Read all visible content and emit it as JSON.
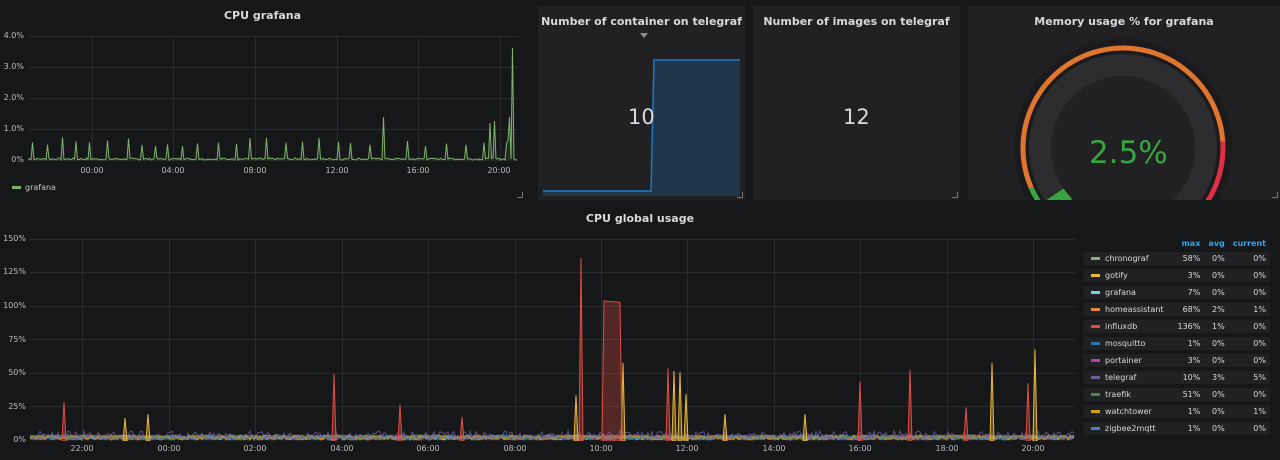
{
  "panels": {
    "cpu_grafana": {
      "title": "CPU grafana",
      "y_ticks": [
        "4.0%",
        "3.0%",
        "2.0%",
        "1.0%",
        "0%"
      ],
      "x_ticks": [
        "00:00",
        "04:00",
        "08:00",
        "12:00",
        "16:00",
        "20:00"
      ],
      "legend": "grafana",
      "color": "#7eb26d"
    },
    "containers": {
      "title": "Number of container on telegraf",
      "value": "10",
      "sparkline_color": "#1f78c1"
    },
    "images": {
      "title": "Number of images on telegraf",
      "value": "12"
    },
    "memory": {
      "title": "Memory usage % for grafana",
      "value": "2.5%",
      "gauge_fraction": 0.025,
      "value_color": "#37a540"
    },
    "cpu_global": {
      "title": "CPU global usage",
      "y_ticks": [
        "150%",
        "125%",
        "100%",
        "75%",
        "50%",
        "25%",
        "0%"
      ],
      "x_ticks": [
        "22:00",
        "00:00",
        "02:00",
        "04:00",
        "06:00",
        "08:00",
        "10:00",
        "12:00",
        "14:00",
        "16:00",
        "18:00",
        "20:00"
      ],
      "legend_headers": {
        "max": "max",
        "avg": "avg",
        "current": "current"
      },
      "legend": [
        {
          "name": "chronograf",
          "max": "58%",
          "avg": "0%",
          "current": "0%",
          "color": "#7eb26d"
        },
        {
          "name": "gotify",
          "max": "3%",
          "avg": "0%",
          "current": "0%",
          "color": "#eab839"
        },
        {
          "name": "grafana",
          "max": "7%",
          "avg": "0%",
          "current": "0%",
          "color": "#6ed0e0"
        },
        {
          "name": "homeassistant",
          "max": "68%",
          "avg": "2%",
          "current": "1%",
          "color": "#ef843c"
        },
        {
          "name": "influxdb",
          "max": "136%",
          "avg": "1%",
          "current": "0%",
          "color": "#e24d42"
        },
        {
          "name": "mosquitto",
          "max": "1%",
          "avg": "0%",
          "current": "0%",
          "color": "#1f78c1"
        },
        {
          "name": "portainer",
          "max": "3%",
          "avg": "0%",
          "current": "0%",
          "color": "#ba43a9"
        },
        {
          "name": "telegraf",
          "max": "10%",
          "avg": "3%",
          "current": "5%",
          "color": "#705da0"
        },
        {
          "name": "traefik",
          "max": "51%",
          "avg": "0%",
          "current": "0%",
          "color": "#508642"
        },
        {
          "name": "watchtower",
          "max": "1%",
          "avg": "0%",
          "current": "1%",
          "color": "#cca300"
        },
        {
          "name": "zigbee2mqtt",
          "max": "1%",
          "avg": "0%",
          "current": "0%",
          "color": "#447ebc"
        }
      ]
    }
  }
}
